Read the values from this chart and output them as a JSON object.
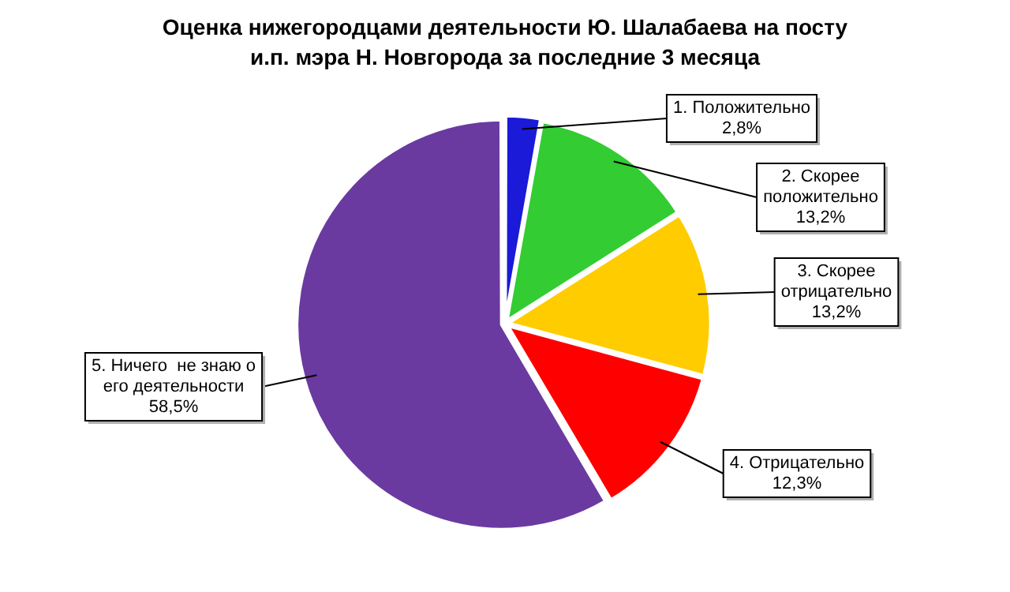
{
  "chart_data": {
    "type": "pie",
    "title": "Оценка нижегородцами деятельности Ю. Шалабаева на посту  и.п. мэра Н. Новгорода за последние 3 месяца",
    "categories": [
      "1. Положительно",
      "2. Скорее положительно",
      "3. Скорее отрицательно",
      "4. Отрицательно",
      "5. Ничего  не знаю о его деятельности"
    ],
    "values": [
      2.8,
      13.2,
      13.2,
      12.3,
      58.5
    ],
    "colors": [
      "#1a1ad8",
      "#33cc33",
      "#ffcc00",
      "#ff0000",
      "#6a3aa0"
    ],
    "value_labels": [
      "2,8%",
      "13,2%",
      "13,2%",
      "12,3%",
      "58,5%"
    ]
  }
}
